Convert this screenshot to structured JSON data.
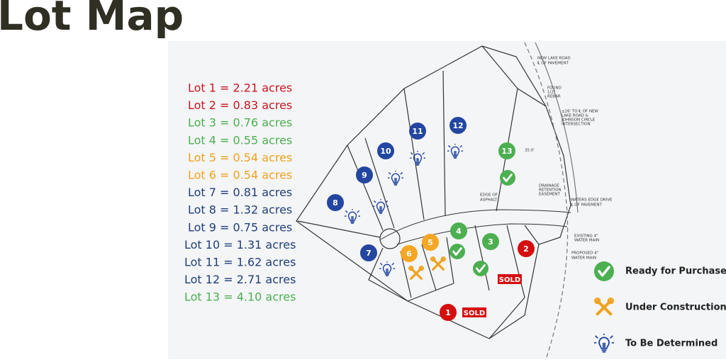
{
  "header": {
    "title": "Lot Map"
  },
  "lots": [
    {
      "text": "Lot 1 = 2.21 acres",
      "color": "#c8161d"
    },
    {
      "text": "Lot 2 = 0.83 acres",
      "color": "#c8161d"
    },
    {
      "text": "Lot 3 = 0.76 acres",
      "color": "#4caf50"
    },
    {
      "text": "Lot 4 = 0.55 acres",
      "color": "#4caf50"
    },
    {
      "text": "Lot 5 = 0.54 acres",
      "color": "#f0a21c"
    },
    {
      "text": "Lot 6 = 0.54 acres",
      "color": "#f0a21c"
    },
    {
      "text": "Lot 7 = 0.81 acres",
      "color": "#1f3f78"
    },
    {
      "text": "Lot 8 = 1.32 acres",
      "color": "#1f3f78"
    },
    {
      "text": "Lot 9 = 0.75 acres",
      "color": "#1f3f78"
    },
    {
      "text": "Lot 10 = 1.31 acres",
      "color": "#1f3f78"
    },
    {
      "text": "Lot 11 = 1.62 acres",
      "color": "#1f3f78"
    },
    {
      "text": "Lot 12 = 2.71 acres",
      "color": "#1f3f78"
    },
    {
      "text": "Lot 13 = 4.10 acres",
      "color": "#4caf50"
    }
  ],
  "map": {
    "markers": [
      {
        "label": "1",
        "color": "#d50f0f"
      },
      {
        "label": "2",
        "color": "#d50f0f"
      },
      {
        "label": "3",
        "color": "#4caf50"
      },
      {
        "label": "4",
        "color": "#4caf50"
      },
      {
        "label": "5",
        "color": "#f5a623"
      },
      {
        "label": "6",
        "color": "#f5a623"
      },
      {
        "label": "7",
        "color": "#2346a0"
      },
      {
        "label": "8",
        "color": "#2346a0"
      },
      {
        "label": "9",
        "color": "#2346a0"
      },
      {
        "label": "10",
        "color": "#2346a0"
      },
      {
        "label": "11",
        "color": "#2346a0"
      },
      {
        "label": "12",
        "color": "#2346a0"
      },
      {
        "label": "13",
        "color": "#4caf50"
      }
    ],
    "badges": [
      "SOLD",
      "SOLD"
    ],
    "annotations": [
      "NEW LAKE ROAD",
      "℄ OF PAVEMENT",
      "FOUND",
      "1/2\"",
      "REBAR",
      "±26' TO ℄ OF NEW",
      "LAKE ROAD &",
      "JOHNSON CIRCLE",
      "INTERSECTION",
      "35.0'",
      "EDGE OF",
      "ASPHALT",
      "WATERS EDGE DRIVE",
      "℄ OF PAVEMENT",
      "EXISTING 4\"",
      "WATER MAIN",
      "PROPOSED 4\"",
      "WATER MAIN",
      "DRAINAGE",
      "RETENTION",
      "EASEMENT"
    ]
  },
  "legend": [
    "Ready for Purchase",
    "Under Construction",
    "To Be Determined"
  ]
}
